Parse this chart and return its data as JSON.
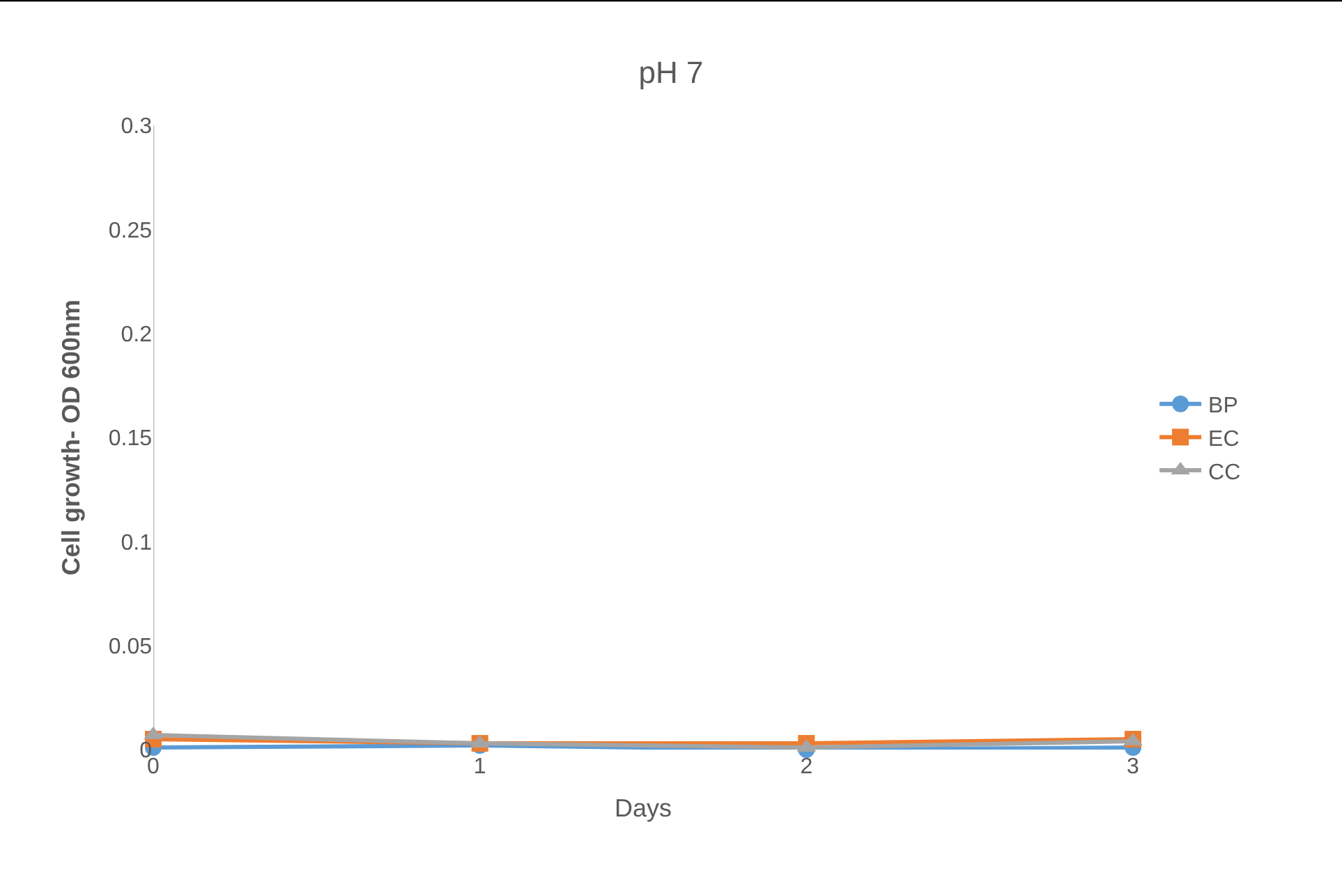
{
  "chart_data": {
    "type": "line",
    "title": "pH 7",
    "xlabel": "Days",
    "ylabel": "Cell growth- OD 600nm",
    "x": [
      0,
      1,
      2,
      3
    ],
    "xlim": [
      0,
      3
    ],
    "xticks": [
      0,
      1,
      2,
      3
    ],
    "ylim": [
      0,
      0.3
    ],
    "yticks": [
      0,
      0.05,
      0.1,
      0.15,
      0.2,
      0.25,
      0.3
    ],
    "series": [
      {
        "name": "BP",
        "color": "#5b9bd5",
        "marker": "circle",
        "values": [
          0.001,
          0.002,
          0.0,
          0.001
        ]
      },
      {
        "name": "EC",
        "color": "#ed7d31",
        "marker": "square",
        "values": [
          0.005,
          0.003,
          0.003,
          0.005
        ]
      },
      {
        "name": "CC",
        "color": "#a5a5a5",
        "marker": "triangle",
        "values": [
          0.007,
          0.003,
          0.001,
          0.004
        ]
      }
    ],
    "legend": "right",
    "grid": false
  }
}
